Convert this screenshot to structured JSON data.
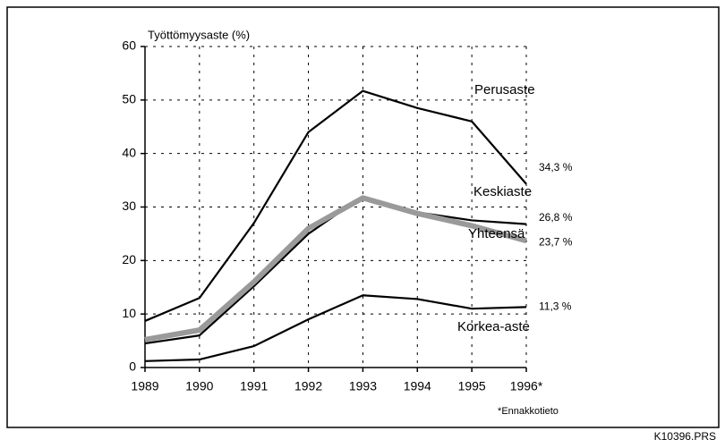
{
  "chart_data": {
    "type": "line",
    "y_label": "Työttömyysaste (%)",
    "categories": [
      "1989",
      "1990",
      "1991",
      "1992",
      "1993",
      "1994",
      "1995",
      "1996*"
    ],
    "series": [
      {
        "name": "Perusaste",
        "color": "#000000",
        "values": [
          8.7,
          13,
          27,
          44,
          51.7,
          48.5,
          46,
          34.3
        ],
        "value_labels": [
          null,
          null,
          null,
          null,
          null,
          null,
          null,
          "34,3 %"
        ]
      },
      {
        "name": "Keskiaste",
        "color": "#000000",
        "values": [
          4.5,
          6,
          15.2,
          25,
          32,
          29,
          27.5,
          26.8
        ],
        "value_labels": [
          null,
          null,
          null,
          null,
          null,
          null,
          null,
          "26,8 %"
        ]
      },
      {
        "name": "Yhteensä",
        "color": "#9a9a9a",
        "values": [
          5.2,
          7,
          16,
          26,
          31.7,
          28.8,
          26.5,
          23.7
        ],
        "value_labels": [
          null,
          null,
          null,
          null,
          null,
          null,
          null,
          "23,7 %"
        ]
      },
      {
        "name": "Korkea-aste",
        "color": "#000000",
        "values": [
          1.2,
          1.5,
          4,
          9,
          13.5,
          12.8,
          11,
          11.3
        ],
        "value_labels": [
          null,
          null,
          null,
          null,
          null,
          null,
          null,
          "11,3 %"
        ]
      }
    ],
    "ylim": [
      0,
      60
    ],
    "yticks": [
      0,
      10,
      20,
      30,
      40,
      50,
      60
    ],
    "grid": true,
    "footnote": "*Ennakkotieto",
    "code": "K10396.PRS"
  }
}
